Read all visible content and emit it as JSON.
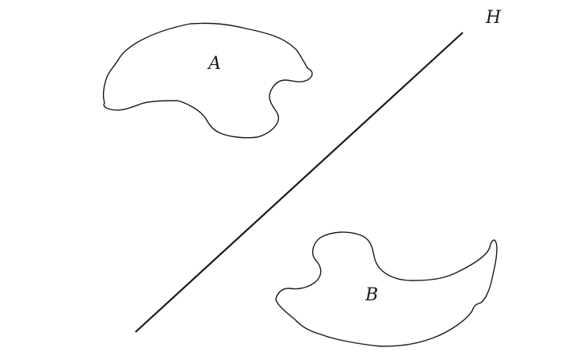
{
  "diagram": {
    "labels": {
      "shape_a": "A",
      "shape_b": "B",
      "line_h": "H"
    },
    "stroke_color": "#1a1a1a",
    "background_color": "#ffffff"
  }
}
